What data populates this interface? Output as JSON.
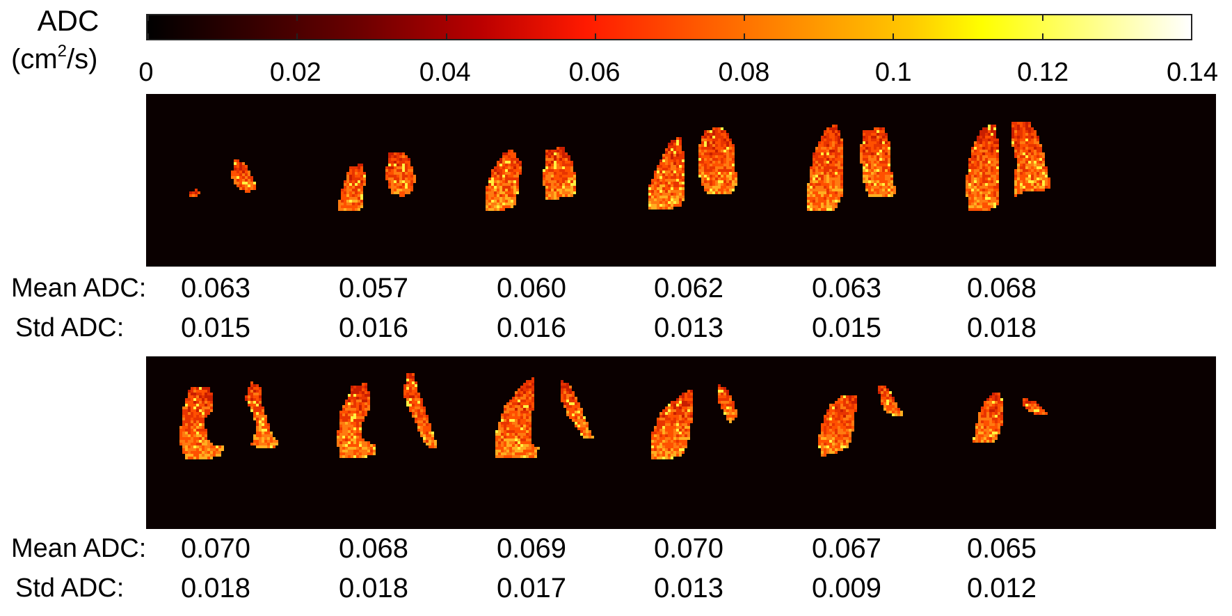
{
  "colorbar": {
    "title": "ADC",
    "units_prefix": "(cm",
    "units_sup": "2",
    "units_suffix": "/s)",
    "ticks": [
      "0",
      "0.02",
      "0.04",
      "0.06",
      "0.08",
      "0.1",
      "0.12",
      "0.14"
    ],
    "range": [
      0,
      0.14
    ],
    "colormap": "hot",
    "colors": [
      "#000000",
      "#bb0000",
      "#ff1a00",
      "#ff9200",
      "#ffff00",
      "#ffffff"
    ]
  },
  "row_labels": {
    "mean": "Mean ADC:",
    "std": "Std ADC:"
  },
  "rows": [
    {
      "mean": [
        "0.063",
        "0.057",
        "0.060",
        "0.062",
        "0.063",
        "0.068"
      ],
      "std": [
        "0.015",
        "0.016",
        "0.016",
        "0.013",
        "0.015",
        "0.018"
      ]
    },
    {
      "mean": [
        "0.070",
        "0.068",
        "0.069",
        "0.070",
        "0.067",
        "0.065"
      ],
      "std": [
        "0.018",
        "0.018",
        "0.017",
        "0.013",
        "0.009",
        "0.012"
      ]
    }
  ],
  "panel_background": "#0a0000",
  "lung_colors": [
    "#c81e00",
    "#e83400",
    "#ff5000",
    "#ff7a10",
    "#ffae20",
    "#fff040"
  ]
}
